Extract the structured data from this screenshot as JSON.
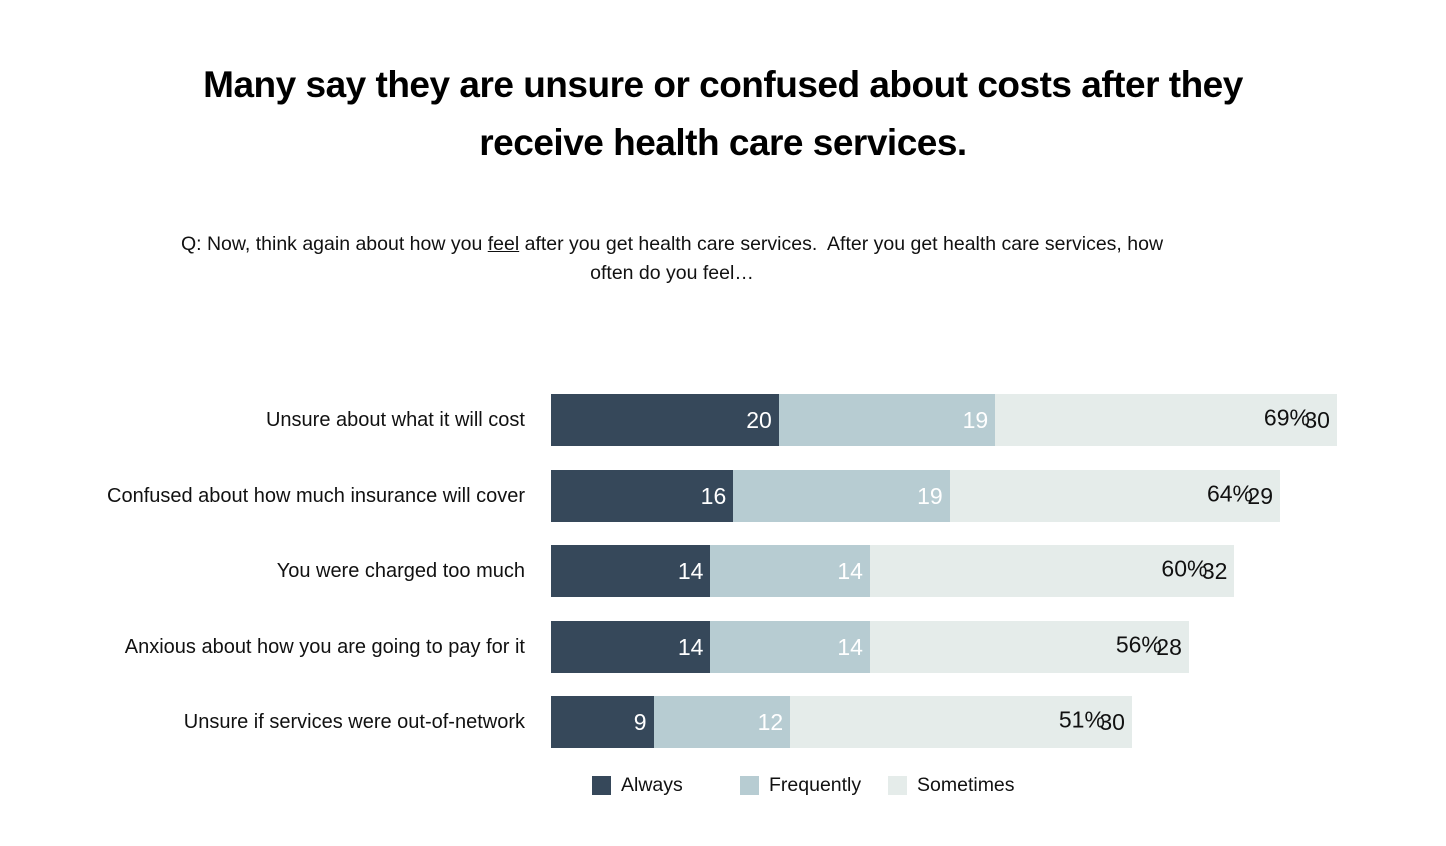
{
  "title": {
    "lines": [
      "Many say they are unsure or confused about costs after they",
      "receive health care services."
    ]
  },
  "question": {
    "line1_pre": "Q: Now, think again about how you ",
    "line1_underlined": "feel",
    "line1_post": " after you get health care services.  After you get health care services, how",
    "line2": "often do you feel…"
  },
  "chart_data": {
    "type": "bar",
    "orientation": "horizontal",
    "stacked": true,
    "categories": [
      "Unsure about what it will cost",
      "Confused about how much insurance will cover",
      "You were charged too much",
      "Anxious about how you are going to pay for it",
      "Unsure if services were out-of-network"
    ],
    "series": [
      {
        "name": "Always",
        "color": "#36485A",
        "label_color": "#ffffff",
        "values": [
          20,
          16,
          14,
          14,
          9
        ]
      },
      {
        "name": "Frequently",
        "color": "#B7CCD2",
        "label_color": "#ffffff",
        "values": [
          19,
          19,
          14,
          14,
          12
        ]
      },
      {
        "name": "Sometimes",
        "color": "#E5ECEA",
        "label_color": "#111111",
        "values": [
          30,
          29,
          32,
          28,
          30
        ]
      }
    ],
    "totals": [
      "69%",
      "64%",
      "60%",
      "56%",
      "51%"
    ],
    "xlim": [
      0,
      69
    ],
    "grid": false,
    "legend_position": "bottom",
    "value_labels": "inside-right"
  }
}
